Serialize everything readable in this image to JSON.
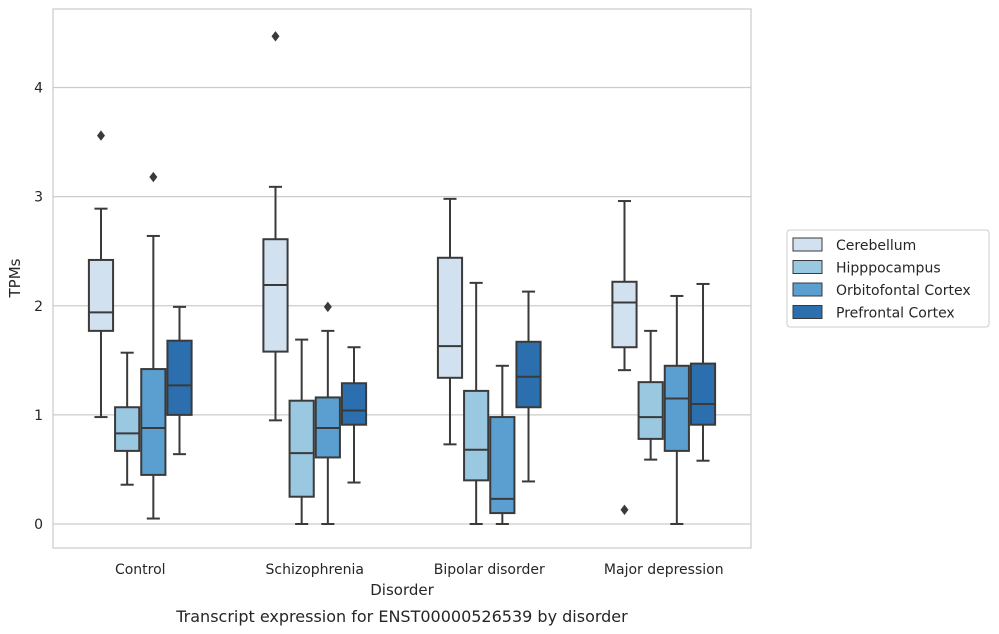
{
  "chart_data": {
    "type": "box",
    "xlabel": "Disorder",
    "ylabel": "TPMs",
    "caption": "Transcript expression for ENST00000526539 by disorder",
    "ylim": [
      -0.22,
      4.72
    ],
    "yticks": [
      0,
      1,
      2,
      3,
      4
    ],
    "categories": [
      "Control",
      "Schizophrenia",
      "Bipolar disorder",
      "Major depression"
    ],
    "grid": "horizontal",
    "legend_position": "right",
    "series": [
      {
        "name": "Cerebellum",
        "color": "#d2e1f0",
        "boxes": [
          {
            "whisker_low": 0.98,
            "q1": 1.77,
            "median": 1.94,
            "q3": 2.42,
            "whisker_high": 2.89,
            "outliers": [
              3.56
            ]
          },
          {
            "whisker_low": 0.95,
            "q1": 1.58,
            "median": 2.19,
            "q3": 2.61,
            "whisker_high": 3.09,
            "outliers": [
              4.47
            ]
          },
          {
            "whisker_low": 0.73,
            "q1": 1.34,
            "median": 1.63,
            "q3": 2.44,
            "whisker_high": 2.98,
            "outliers": []
          },
          {
            "whisker_low": 1.41,
            "q1": 1.62,
            "median": 2.03,
            "q3": 2.22,
            "whisker_high": 2.96,
            "outliers": [
              0.13
            ]
          }
        ]
      },
      {
        "name": "Hipppocampus",
        "color": "#9ac8e0",
        "boxes": [
          {
            "whisker_low": 0.36,
            "q1": 0.67,
            "median": 0.83,
            "q3": 1.07,
            "whisker_high": 1.57,
            "outliers": []
          },
          {
            "whisker_low": 0.0,
            "q1": 0.25,
            "median": 0.65,
            "q3": 1.13,
            "whisker_high": 1.69,
            "outliers": []
          },
          {
            "whisker_low": 0.0,
            "q1": 0.4,
            "median": 0.68,
            "q3": 1.22,
            "whisker_high": 2.21,
            "outliers": []
          },
          {
            "whisker_low": 0.59,
            "q1": 0.78,
            "median": 0.98,
            "q3": 1.3,
            "whisker_high": 1.77,
            "outliers": []
          }
        ]
      },
      {
        "name": "Orbitofontal Cortex",
        "color": "#5a9fcf",
        "boxes": [
          {
            "whisker_low": 0.05,
            "q1": 0.45,
            "median": 0.88,
            "q3": 1.42,
            "whisker_high": 2.64,
            "outliers": [
              3.18
            ]
          },
          {
            "whisker_low": 0.0,
            "q1": 0.61,
            "median": 0.88,
            "q3": 1.16,
            "whisker_high": 1.77,
            "outliers": [
              1.99
            ]
          },
          {
            "whisker_low": 0.0,
            "q1": 0.1,
            "median": 0.23,
            "q3": 0.98,
            "whisker_high": 1.45,
            "outliers": []
          },
          {
            "whisker_low": 0.0,
            "q1": 0.67,
            "median": 1.15,
            "q3": 1.45,
            "whisker_high": 2.09,
            "outliers": []
          }
        ]
      },
      {
        "name": "Prefrontal Cortex",
        "color": "#2c6fae",
        "boxes": [
          {
            "whisker_low": 0.64,
            "q1": 1.0,
            "median": 1.27,
            "q3": 1.68,
            "whisker_high": 1.99,
            "outliers": []
          },
          {
            "whisker_low": 0.38,
            "q1": 0.91,
            "median": 1.04,
            "q3": 1.29,
            "whisker_high": 1.62,
            "outliers": []
          },
          {
            "whisker_low": 0.39,
            "q1": 1.07,
            "median": 1.35,
            "q3": 1.67,
            "whisker_high": 2.13,
            "outliers": []
          },
          {
            "whisker_low": 0.58,
            "q1": 0.91,
            "median": 1.1,
            "q3": 1.47,
            "whisker_high": 2.2,
            "outliers": []
          }
        ]
      }
    ]
  }
}
